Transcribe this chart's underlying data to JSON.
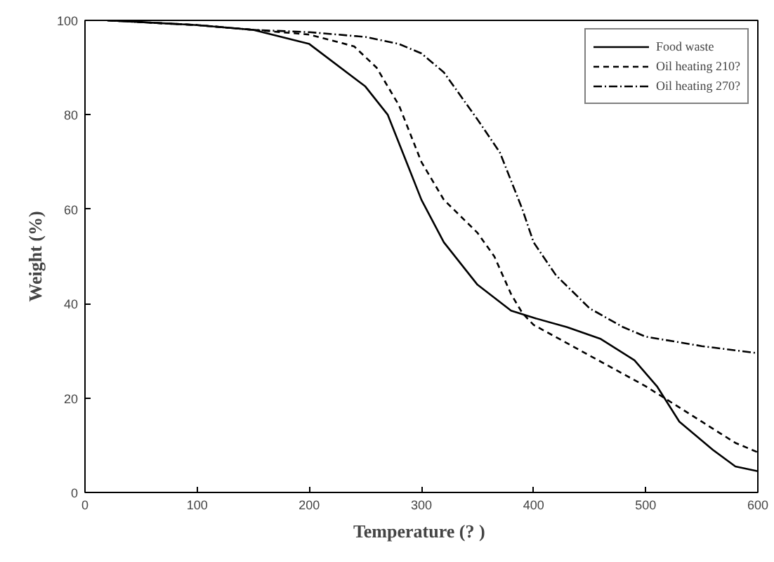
{
  "chart_data": {
    "type": "line",
    "xlabel": "Temperature (?  )",
    "ylabel": "Weight (%)",
    "xlim": [
      0,
      600
    ],
    "ylim": [
      0,
      100
    ],
    "xticks": [
      0,
      100,
      200,
      300,
      400,
      500,
      600
    ],
    "yticks": [
      0,
      20,
      40,
      60,
      80,
      100
    ],
    "grid": false,
    "legend": "top right",
    "series": [
      {
        "name": "Food waste",
        "color": "#000000",
        "line_style": "solid",
        "x": [
          20,
          100,
          150,
          200,
          250,
          270,
          290,
          300,
          320,
          350,
          380,
          400,
          430,
          460,
          490,
          510,
          530,
          560,
          580,
          600
        ],
        "values": [
          100,
          99,
          98,
          95,
          86,
          80,
          68,
          62,
          53,
          44,
          38.5,
          37,
          35,
          32.5,
          28,
          22.5,
          15,
          9,
          5.5,
          4.5
        ]
      },
      {
        "name": "Oil heating 210?",
        "color": "#000000",
        "line_style": "dashed",
        "x": [
          20,
          100,
          150,
          200,
          240,
          260,
          280,
          300,
          320,
          350,
          365,
          380,
          390,
          400,
          450,
          500,
          520,
          550,
          580,
          600
        ],
        "values": [
          100,
          99,
          98,
          97,
          94.5,
          90,
          82,
          70,
          62,
          55,
          50,
          42,
          38,
          35.5,
          29,
          22.5,
          19.5,
          15,
          10.5,
          8.5
        ]
      },
      {
        "name": "Oil heating 270?",
        "color": "#000000",
        "line_style": "dashdot",
        "x": [
          20,
          100,
          150,
          200,
          250,
          280,
          300,
          320,
          350,
          370,
          390,
          400,
          420,
          450,
          480,
          500,
          550,
          600
        ],
        "values": [
          100,
          99,
          98,
          97.5,
          96.5,
          95,
          93,
          89,
          79,
          72,
          60,
          53,
          46,
          39,
          35,
          33,
          31,
          29.5
        ]
      }
    ]
  }
}
